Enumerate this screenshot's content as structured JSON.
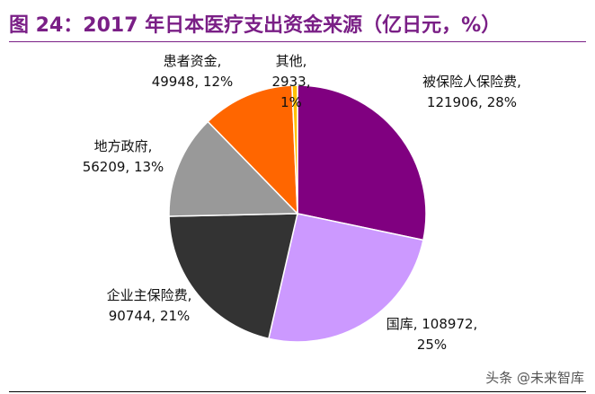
{
  "chart_data": {
    "type": "pie",
    "title": "图 24：2017 年日本医疗支出资金来源（亿日元，%）",
    "categories": [
      "被保险人保险费,",
      "国库,",
      "企业主保险费,",
      "地方政府,",
      "患者资金,",
      "其他,"
    ],
    "values": [
      121906,
      108972,
      90744,
      56209,
      49948,
      2933
    ],
    "value_labels": [
      "121906, 28%",
      "108972, 25%",
      "90744, 21%",
      "56209, 13%",
      "49948, 12%",
      "2933, 1%"
    ],
    "colors": [
      "#800080",
      "#cc99ff",
      "#333333",
      "#999999",
      "#ff6600",
      "#ffc000"
    ]
  },
  "watermark": "头条 @未来智库"
}
